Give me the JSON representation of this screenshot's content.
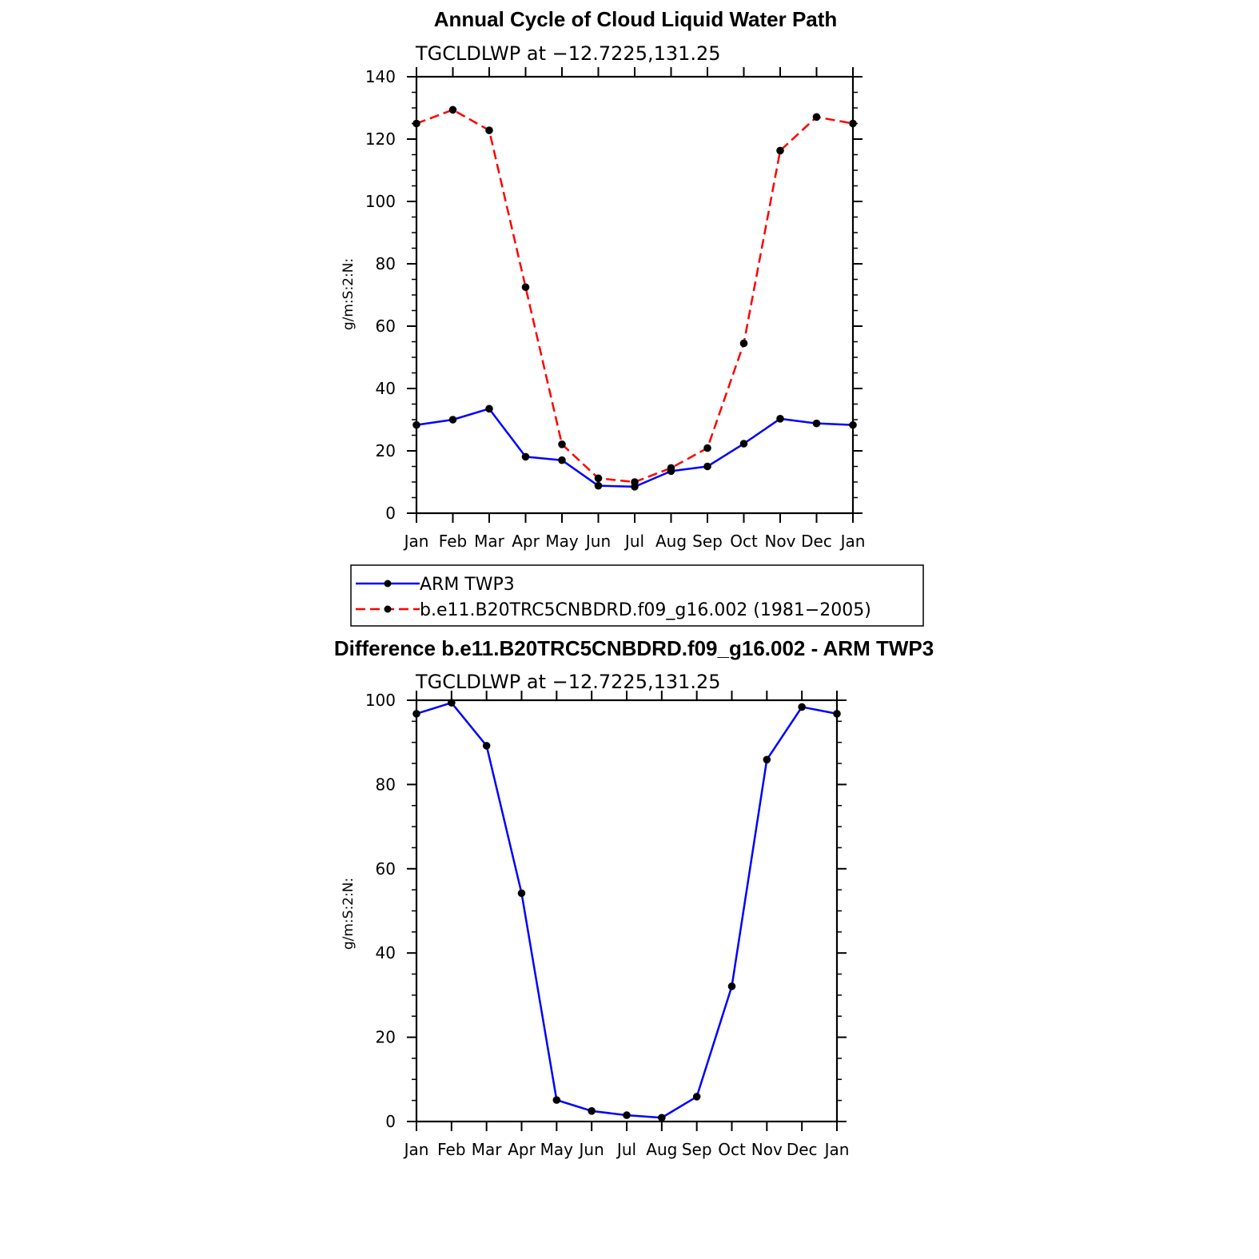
{
  "chart_data": [
    {
      "type": "line",
      "title": "Annual Cycle of Cloud Liquid Water Path",
      "subtitle": "TGCLDLWP at −12.7225,131.25",
      "ylabel": "g/m:S:2:N:",
      "xlabel": "",
      "categories": [
        "Jan",
        "Feb",
        "Mar",
        "Apr",
        "May",
        "Jun",
        "Jul",
        "Aug",
        "Sep",
        "Oct",
        "Nov",
        "Dec",
        "Jan"
      ],
      "ylim": [
        0,
        140
      ],
      "yticks": [
        0,
        20,
        40,
        60,
        80,
        100,
        120,
        140
      ],
      "grid": false,
      "legend_position": "below",
      "series": [
        {
          "name": "ARM TWP3",
          "color": "#0000ff",
          "dash": "solid",
          "values": [
            28.3,
            30.0,
            33.5,
            18.1,
            17.0,
            8.8,
            8.5,
            13.5,
            15.0,
            22.3,
            30.3,
            28.8,
            28.3
          ]
        },
        {
          "name": "b.e11.B20TRC5CNBDRD.f09_g16.002 (1981−2005)",
          "color": "#ff0000",
          "dash": "dashed",
          "values": [
            125.0,
            129.4,
            122.8,
            72.5,
            22.1,
            11.2,
            10.0,
            14.5,
            20.9,
            54.5,
            116.3,
            127.1,
            125.0
          ]
        }
      ]
    },
    {
      "type": "line",
      "title": "Difference b.e11.B20TRC5CNBDRD.f09_g16.002 - ARM TWP3",
      "subtitle": "TGCLDLWP at −12.7225,131.25",
      "ylabel": "g/m:S:2:N:",
      "xlabel": "",
      "categories": [
        "Jan",
        "Feb",
        "Mar",
        "Apr",
        "May",
        "Jun",
        "Jul",
        "Aug",
        "Sep",
        "Oct",
        "Nov",
        "Dec",
        "Jan"
      ],
      "ylim": [
        0,
        100
      ],
      "yticks": [
        0,
        20,
        40,
        60,
        80,
        100
      ],
      "grid": false,
      "series": [
        {
          "color": "#0000ff",
          "dash": "solid",
          "values": [
            96.8,
            99.4,
            89.2,
            54.2,
            5.1,
            2.5,
            1.5,
            0.9,
            5.9,
            32.1,
            85.9,
            98.4,
            96.8
          ]
        }
      ]
    }
  ]
}
